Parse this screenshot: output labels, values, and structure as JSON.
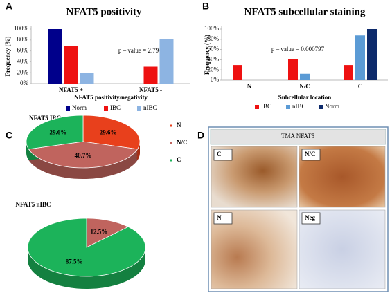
{
  "chart_data": [
    {
      "type": "bar",
      "panel": "A",
      "title": "NFAT5 positivity",
      "x_label": "NFAT5 positivity/negativity",
      "y_label": "Frequency (%)",
      "annotation": "p – value = 2.79·10⁻⁷",
      "categories": [
        "NFAT5 +",
        "NFAT5 -"
      ],
      "series": [
        {
          "name": "Norm",
          "color": "#00008b",
          "values": [
            100,
            0
          ]
        },
        {
          "name": "IBC",
          "color": "#ee1111",
          "values": [
            69,
            31
          ]
        },
        {
          "name": "nIBC",
          "color": "#8db4e2",
          "values": [
            19,
            81
          ]
        }
      ],
      "ylim": [
        0,
        100
      ],
      "yticks": [
        {
          "value": 0,
          "label": "0%"
        },
        {
          "value": 20,
          "label": "20%"
        },
        {
          "value": 40,
          "label": "40%"
        },
        {
          "value": 60,
          "label": "60%"
        },
        {
          "value": 80,
          "label": "80%"
        },
        {
          "value": 100,
          "label": "100%"
        }
      ],
      "grid": false
    },
    {
      "type": "bar",
      "panel": "B",
      "title": "NFAT5 subcellular staining",
      "x_label": "Subcellular location",
      "y_label": "Frequency (%)",
      "annotation": "p – value = 0.000797",
      "categories": [
        "N",
        "N/C",
        "C"
      ],
      "series": [
        {
          "name": "IBC",
          "color": "#ee1111",
          "values": [
            29.6,
            40.7,
            29.6
          ]
        },
        {
          "name": "nIBC",
          "color": "#5b9bd5",
          "values": [
            0,
            12.5,
            87.5
          ]
        },
        {
          "name": "Norm",
          "color": "#0d2a6b",
          "values": [
            0,
            0,
            100
          ]
        }
      ],
      "ylim": [
        0,
        100
      ],
      "yticks": [
        {
          "value": 0,
          "label": "0%"
        },
        {
          "value": 20,
          "label": "20%"
        },
        {
          "value": 40,
          "label": "40%"
        },
        {
          "value": 60,
          "label": "60%"
        },
        {
          "value": 80,
          "label": "80%"
        },
        {
          "value": 100,
          "label": "100%"
        }
      ],
      "grid": false
    },
    {
      "type": "pie",
      "panel": "C",
      "title": "NFAT5 IBC",
      "categories": [
        "N",
        "N/C",
        "C"
      ],
      "values": [
        29.6,
        40.7,
        29.6
      ],
      "value_labels": [
        "29.6%",
        "40.7%",
        "29.6%"
      ],
      "colors": [
        "#e8401c",
        "#c0645e",
        "#1cb35a"
      ]
    },
    {
      "type": "pie",
      "title": "NFAT5 nIBC",
      "categories": [
        "N/C",
        "C"
      ],
      "values": [
        12.5,
        87.5
      ],
      "value_labels": [
        "12.5%",
        "87.5%"
      ],
      "colors": [
        "#c0645e",
        "#1cb35a"
      ]
    }
  ],
  "panel_d": {
    "panel": "D",
    "title": "TMA NFAT5",
    "images": [
      "C",
      "N/C",
      "N",
      "Neg"
    ]
  }
}
